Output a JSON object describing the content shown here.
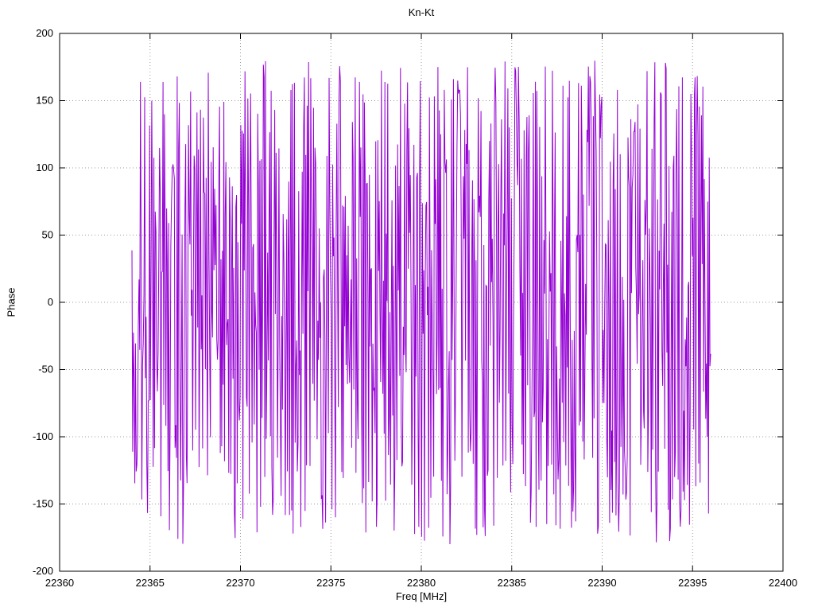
{
  "chart_data": {
    "type": "line",
    "title": "Kn-Kt",
    "xlabel": "Freq [MHz]",
    "ylabel": "Phase",
    "xlim": [
      22360,
      22400
    ],
    "ylim": [
      -200,
      200
    ],
    "x_ticks": [
      22360,
      22365,
      22370,
      22375,
      22380,
      22385,
      22390,
      22395,
      22400
    ],
    "y_ticks": [
      -200,
      -150,
      -100,
      -50,
      0,
      50,
      100,
      150,
      200
    ],
    "grid": true,
    "legend_position": "none",
    "line_color": "#9400d3",
    "series": [
      {
        "name": "Kn-Kt",
        "x_start": 22364.0,
        "x_end": 22396.0,
        "n_points": 820,
        "y_min": -180,
        "y_max": 180,
        "signal": "wrapped-phase-noise-uniform",
        "seed": 1234567
      }
    ]
  }
}
